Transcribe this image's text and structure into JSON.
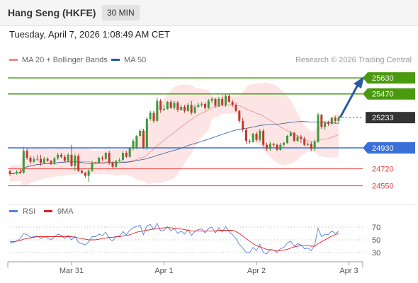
{
  "header": {
    "title": "Hang Seng (HKFE)",
    "interval": "30 MIN"
  },
  "datetime": "Tuesday, April 7, 2026 1:08:49 AM CET",
  "legend": {
    "ma20_bb": {
      "label": "MA 20 + Bollinger Bands",
      "color": "#f08a8a"
    },
    "ma50": {
      "label": "MA 50",
      "color": "#2a5a9a"
    }
  },
  "credit": "Research © 2026 Trading Central",
  "colors": {
    "up": "#3a9a3a",
    "down": "#c0392b",
    "resistance": "#4a9a10",
    "support": "#3a6fd8",
    "support2": "#e84040",
    "price": "#333333",
    "band": "#fde0e0",
    "rsi": "#5a7fe0",
    "rsi_ma": "#e02020",
    "arrow": "#2a5aa0"
  },
  "chart_data": {
    "type": "candlestick",
    "price_axis": {
      "min": 24455,
      "max": 25730
    },
    "levels": [
      {
        "label": "25630",
        "value": 25630,
        "kind": "resistance"
      },
      {
        "label": "25470",
        "value": 25470,
        "kind": "resistance"
      },
      {
        "label": "25233",
        "value": 25233,
        "kind": "price"
      },
      {
        "label": "24930",
        "value": 24930,
        "kind": "support"
      },
      {
        "label": "24720",
        "value": 24720,
        "kind": "support2"
      },
      {
        "label": "24550",
        "value": 24550,
        "kind": "support2"
      }
    ],
    "candles": [
      [
        24695,
        24670,
        24710,
        24650
      ],
      [
        24670,
        24675,
        24680,
        24665
      ],
      [
        24675,
        24690,
        24708,
        24660
      ],
      [
        24690,
        24680,
        24720,
        24670
      ],
      [
        24680,
        24900,
        24940,
        24670
      ],
      [
        24900,
        24830,
        24920,
        24810
      ],
      [
        24830,
        24790,
        24850,
        24770
      ],
      [
        24790,
        24815,
        24840,
        24780
      ],
      [
        24815,
        24820,
        24860,
        24795
      ],
      [
        24820,
        24780,
        24860,
        24750
      ],
      [
        24780,
        24820,
        24840,
        24770
      ],
      [
        24820,
        24800,
        24835,
        24790
      ],
      [
        24800,
        24770,
        24810,
        24760
      ],
      [
        24770,
        24825,
        24840,
        24760
      ],
      [
        24825,
        24860,
        24880,
        24810
      ],
      [
        24860,
        24840,
        24880,
        24825
      ],
      [
        24840,
        24800,
        24860,
        24790
      ],
      [
        24800,
        24860,
        24880,
        24790
      ],
      [
        24860,
        24750,
        24960,
        24740
      ],
      [
        24750,
        24850,
        24870,
        24700
      ],
      [
        24850,
        24700,
        24870,
        24690
      ],
      [
        24700,
        24680,
        24715,
        24670
      ],
      [
        24680,
        24650,
        24690,
        24630
      ],
      [
        24650,
        24700,
        24720,
        24590
      ],
      [
        24700,
        24780,
        24800,
        24690
      ],
      [
        24780,
        24780,
        24790,
        24770
      ],
      [
        24780,
        24830,
        24840,
        24770
      ],
      [
        24830,
        24820,
        24850,
        24800
      ],
      [
        24820,
        24880,
        24890,
        24810
      ],
      [
        24880,
        24780,
        24900,
        24760
      ],
      [
        24780,
        24740,
        24795,
        24725
      ],
      [
        24740,
        24800,
        24810,
        24730
      ],
      [
        24800,
        24810,
        24830,
        24790
      ],
      [
        24810,
        24880,
        24900,
        24800
      ],
      [
        24880,
        24840,
        24900,
        24830
      ],
      [
        24840,
        24925,
        24940,
        24830
      ],
      [
        24925,
        25000,
        25020,
        24905
      ],
      [
        24925,
        25050,
        25060,
        24915
      ],
      [
        25050,
        25100,
        25120,
        25040
      ],
      [
        25100,
        24930,
        25120,
        24920
      ],
      [
        24930,
        25220,
        25240,
        24910
      ],
      [
        25220,
        25280,
        25300,
        25200
      ],
      [
        25280,
        25200,
        25300,
        25180
      ],
      [
        25200,
        25400,
        25430,
        25190
      ],
      [
        25400,
        25310,
        25420,
        25280
      ],
      [
        25310,
        25320,
        25360,
        25300
      ],
      [
        25320,
        25390,
        25400,
        25310
      ],
      [
        25390,
        25330,
        25410,
        25320
      ],
      [
        25330,
        25380,
        25400,
        25310
      ],
      [
        25380,
        25310,
        25400,
        25290
      ],
      [
        25310,
        25340,
        25360,
        25300
      ],
      [
        25340,
        25300,
        25360,
        25280
      ],
      [
        25300,
        25360,
        25380,
        25290
      ],
      [
        25360,
        25280,
        25400,
        25260
      ],
      [
        25280,
        25340,
        25360,
        25270
      ],
      [
        25340,
        25360,
        25380,
        25330
      ],
      [
        25360,
        25370,
        25390,
        25340
      ],
      [
        25370,
        25330,
        25380,
        25310
      ],
      [
        25330,
        25400,
        25420,
        25320
      ],
      [
        25400,
        25420,
        25440,
        25380
      ],
      [
        25420,
        25350,
        25430,
        25330
      ],
      [
        25350,
        25420,
        25440,
        25340
      ],
      [
        25420,
        25360,
        25460,
        25350
      ],
      [
        25360,
        25450,
        25470,
        25340
      ],
      [
        25450,
        25390,
        25470,
        25380
      ],
      [
        25390,
        25360,
        25410,
        25340
      ],
      [
        25360,
        25300,
        25380,
        25290
      ],
      [
        25300,
        25200,
        25310,
        25180
      ],
      [
        25200,
        25110,
        25230,
        25090
      ],
      [
        25110,
        25000,
        25130,
        24970
      ],
      [
        25000,
        24990,
        25020,
        24970
      ],
      [
        24990,
        25070,
        25080,
        24980
      ],
      [
        25070,
        25010,
        25090,
        24990
      ],
      [
        25010,
        25100,
        25120,
        24990
      ],
      [
        25100,
        24960,
        25120,
        24940
      ],
      [
        24960,
        24920,
        24980,
        24900
      ],
      [
        24920,
        24970,
        24990,
        24900
      ],
      [
        24970,
        24960,
        24980,
        24940
      ],
      [
        24960,
        24910,
        24970,
        24900
      ],
      [
        24910,
        24960,
        24980,
        24900
      ],
      [
        24960,
        24980,
        24990,
        24940
      ],
      [
        24980,
        25050,
        25060,
        24970
      ],
      [
        25050,
        25080,
        25100,
        25040
      ],
      [
        25080,
        25000,
        25090,
        24990
      ],
      [
        25000,
        25040,
        25060,
        24990
      ],
      [
        25040,
        25020,
        25060,
        24980
      ],
      [
        25020,
        24960,
        25040,
        24950
      ],
      [
        24960,
        24970,
        24990,
        24950
      ],
      [
        24970,
        24920,
        24990,
        24900
      ],
      [
        24920,
        24990,
        25010,
        24900
      ],
      [
        24990,
        25260,
        25280,
        24980
      ],
      [
        25260,
        25140,
        25270,
        25120
      ],
      [
        25140,
        25180,
        25200,
        25110
      ],
      [
        25180,
        25170,
        25200,
        25150
      ],
      [
        25170,
        25230,
        25240,
        25160
      ],
      [
        25230,
        25200,
        25250,
        25170
      ],
      [
        25200,
        25230,
        25250,
        25180
      ]
    ],
    "x_labels": [
      {
        "label": "Mar 31",
        "index": 18
      },
      {
        "label": "Apr 1",
        "index": 45
      },
      {
        "label": "Apr 2",
        "index": 72
      },
      {
        "label": "Apr 3",
        "index": 99
      }
    ],
    "forecast_arrow": {
      "from": 25233,
      "to": 25630
    },
    "rsi": {
      "legend": [
        "RSI",
        "9MA"
      ],
      "levels": [
        {
          "label": "70",
          "value": 70
        },
        {
          "label": "50",
          "value": 50
        },
        {
          "label": "30",
          "value": 30
        }
      ],
      "axis": {
        "min": 20,
        "max": 80
      },
      "rsi_values": [
        45,
        46,
        48,
        52,
        60,
        58,
        54,
        55,
        56,
        52,
        55,
        53,
        50,
        55,
        59,
        57,
        52,
        57,
        50,
        56,
        46,
        44,
        42,
        47,
        55,
        55,
        59,
        57,
        62,
        52,
        48,
        55,
        56,
        63,
        58,
        65,
        69,
        71,
        73,
        58,
        72,
        74,
        66,
        76,
        64,
        65,
        71,
        64,
        68,
        60,
        64,
        59,
        66,
        57,
        63,
        66,
        67,
        61,
        68,
        70,
        61,
        69,
        62,
        71,
        63,
        58,
        52,
        43,
        37,
        30,
        30,
        38,
        33,
        43,
        30,
        28,
        35,
        34,
        30,
        36,
        38,
        45,
        48,
        40,
        44,
        42,
        36,
        37,
        33,
        42,
        68,
        55,
        59,
        58,
        64,
        60,
        63
      ],
      "ma_values": [
        47,
        47,
        48,
        49,
        51,
        52,
        53,
        54,
        55,
        55,
        55,
        55,
        55,
        55,
        55,
        55,
        55,
        55,
        55,
        54,
        53,
        52,
        51,
        50,
        50,
        50,
        51,
        52,
        53,
        54,
        54,
        55,
        55,
        56,
        57,
        58,
        60,
        62,
        63,
        64,
        65,
        66,
        67,
        68,
        68,
        69,
        69,
        69,
        68,
        68,
        67,
        66,
        65,
        64,
        64,
        64,
        64,
        64,
        64,
        64,
        64,
        65,
        65,
        65,
        65,
        65,
        63,
        60,
        56,
        52,
        48,
        44,
        41,
        39,
        37,
        35,
        34,
        34,
        33,
        33,
        34,
        35,
        37,
        39,
        40,
        41,
        41,
        41,
        40,
        40,
        44,
        47,
        50,
        53,
        56,
        58,
        60
      ]
    }
  }
}
